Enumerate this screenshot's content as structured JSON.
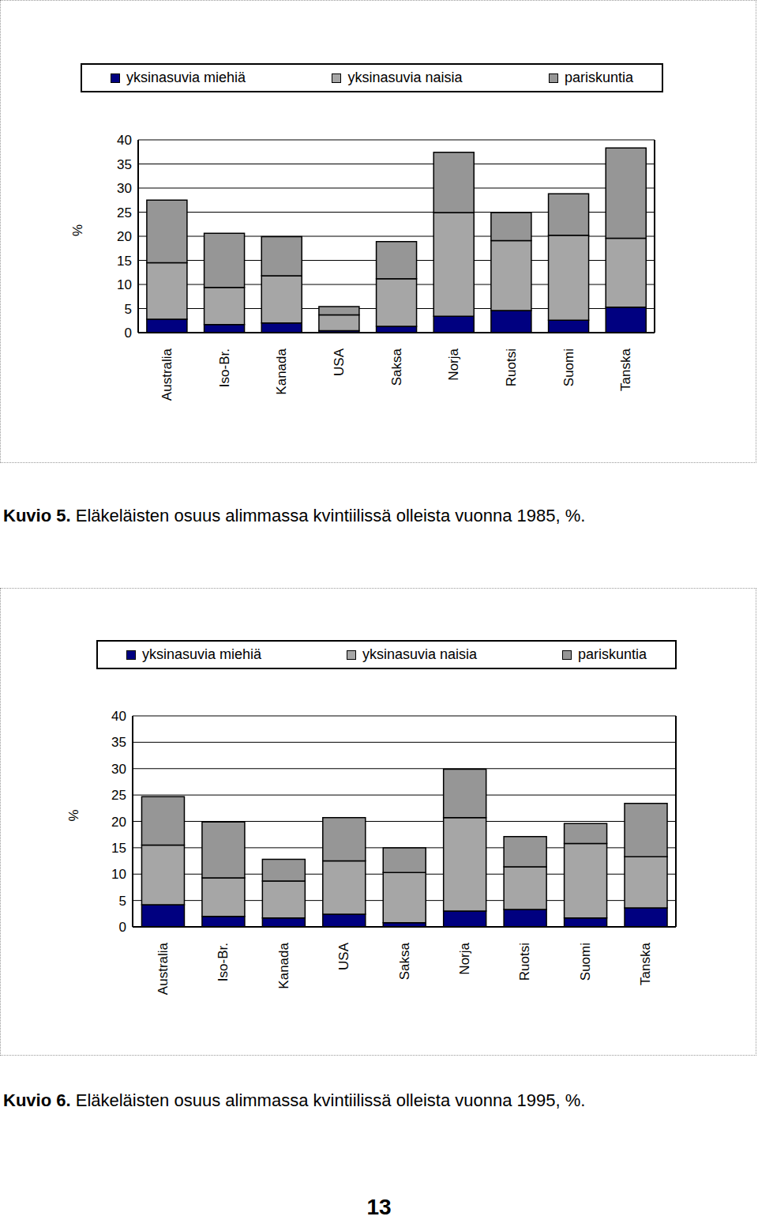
{
  "chart_data": [
    {
      "type": "bar",
      "stacked": true,
      "grid": true,
      "legend": "top",
      "title": "Kuvio 5. Eläkeläisten osuus alimmassa kvintiilissä olleista vuonna 1985, %.",
      "ylabel": "%",
      "categories": [
        "Australia",
        "Iso-Br.",
        "Kanada",
        "USA",
        "Saksa",
        "Norja",
        "Ruotsi",
        "Suomi",
        "Tanska"
      ],
      "series": [
        {
          "name": "yksinasuvia miehiä",
          "color": "#000080",
          "values": [
            2.8,
            1.7,
            2.0,
            0.4,
            1.3,
            3.4,
            4.6,
            2.6,
            5.3
          ]
        },
        {
          "name": "yksinasuvia naisia",
          "color": "#a6a6a6",
          "values": [
            11.7,
            7.7,
            9.8,
            3.3,
            9.9,
            21.5,
            14.5,
            17.6,
            14.3
          ]
        },
        {
          "name": "pariskuntia",
          "color": "#969696",
          "values": [
            13.0,
            11.2,
            8.1,
            1.7,
            7.7,
            12.5,
            5.8,
            8.6,
            18.7
          ]
        }
      ],
      "ylim": [
        0,
        40
      ],
      "yticks": [
        0,
        5,
        10,
        15,
        20,
        25,
        30,
        35,
        40
      ]
    },
    {
      "type": "bar",
      "stacked": true,
      "grid": true,
      "legend": "top",
      "title": "Kuvio 6. Eläkeläisten osuus alimmassa kvintiilissä olleista vuonna 1995, %.",
      "ylabel": "%",
      "categories": [
        "Australia",
        "Iso-Br.",
        "Kanada",
        "USA",
        "Saksa",
        "Norja",
        "Ruotsi",
        "Suomi",
        "Tanska"
      ],
      "series": [
        {
          "name": "yksinasuvia miehiä",
          "color": "#000080",
          "values": [
            4.2,
            2.0,
            1.7,
            2.4,
            0.8,
            3.0,
            3.3,
            1.7,
            3.6
          ]
        },
        {
          "name": "yksinasuvia naisia",
          "color": "#a6a6a6",
          "values": [
            11.3,
            7.3,
            7.0,
            10.1,
            9.5,
            17.7,
            8.1,
            14.1,
            9.7
          ]
        },
        {
          "name": "pariskuntia",
          "color": "#969696",
          "values": [
            9.2,
            10.6,
            4.1,
            8.2,
            4.7,
            9.2,
            5.7,
            3.8,
            10.1
          ]
        }
      ],
      "ylim": [
        0,
        40
      ],
      "yticks": [
        0,
        5,
        10,
        15,
        20,
        25,
        30,
        35,
        40
      ]
    }
  ],
  "page_number": 13
}
